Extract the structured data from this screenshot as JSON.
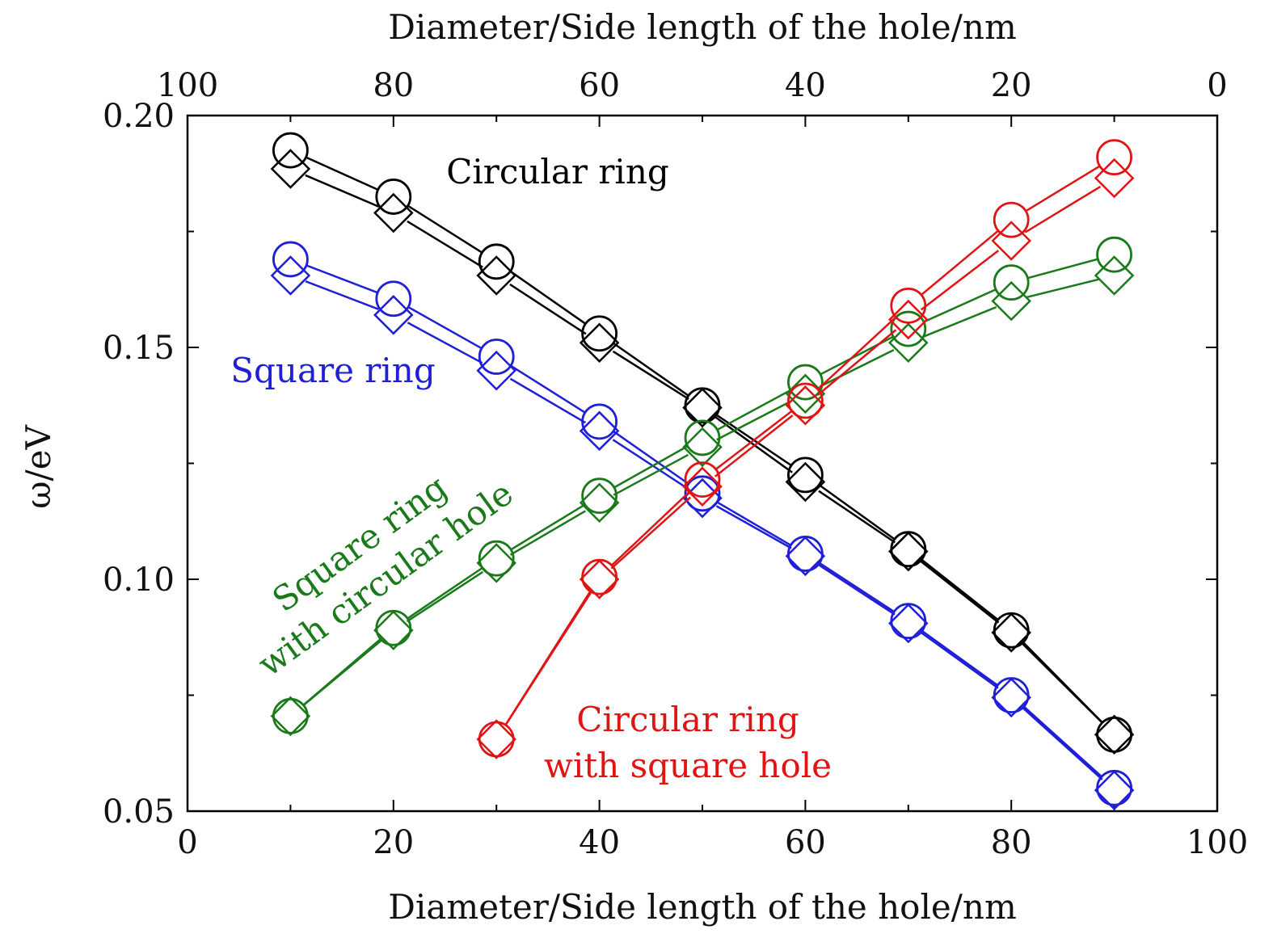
{
  "chart_data": {
    "type": "line",
    "title": "",
    "xlabel": "Diameter/Side length of the hole/nm",
    "x2label": "Diameter/Side length of the hole/nm",
    "ylabel": "ω/eV",
    "xlim": [
      0,
      100
    ],
    "x2lim": [
      100,
      0
    ],
    "ylim": [
      0.05,
      0.2
    ],
    "xticks": [
      "0",
      "20",
      "40",
      "60",
      "80",
      "100"
    ],
    "x2ticks": [
      "100",
      "80",
      "60",
      "40",
      "20",
      "0"
    ],
    "yticks": [
      "0.05",
      "0.10",
      "0.15",
      "0.20"
    ],
    "grid": false,
    "marker_legend": {
      "circle": "upper marker of each pair",
      "diamond": "lower marker of each pair"
    },
    "series": [
      {
        "name": "Circular ring",
        "color": "#000000",
        "x": [
          10,
          20,
          30,
          40,
          50,
          60,
          70,
          80,
          90
        ],
        "circle": [
          0.1925,
          0.1825,
          0.1685,
          0.153,
          0.1375,
          0.1225,
          0.1065,
          0.089,
          0.0665
        ],
        "diamond": [
          0.1885,
          0.179,
          0.1655,
          0.151,
          0.137,
          0.121,
          0.106,
          0.0885,
          0.0665
        ]
      },
      {
        "name": "Square ring",
        "color": "#1f1fd6",
        "x": [
          10,
          20,
          30,
          40,
          50,
          60,
          70,
          80,
          90
        ],
        "circle": [
          0.169,
          0.1605,
          0.148,
          0.134,
          0.1185,
          0.1055,
          0.091,
          0.075,
          0.055
        ],
        "diamond": [
          0.1655,
          0.157,
          0.145,
          0.132,
          0.1175,
          0.105,
          0.0905,
          0.0745,
          0.0545
        ]
      },
      {
        "name": "Square ring with circular hole",
        "color": "#1a7a1a",
        "x": [
          10,
          20,
          30,
          40,
          50,
          60,
          70,
          80,
          90
        ],
        "circle": [
          0.0705,
          0.0895,
          0.1045,
          0.118,
          0.1305,
          0.1425,
          0.154,
          0.164,
          0.17
        ],
        "diamond": [
          0.0705,
          0.089,
          0.1035,
          0.1165,
          0.1285,
          0.14,
          0.151,
          0.16,
          0.1655
        ]
      },
      {
        "name": "Circular ring with square hole",
        "color": "#e01414",
        "x": [
          30,
          40,
          50,
          60,
          70,
          80,
          90
        ],
        "circle": [
          0.0655,
          0.1005,
          0.1215,
          0.1385,
          0.159,
          0.1775,
          0.191
        ],
        "diamond": [
          0.0655,
          0.1,
          0.12,
          0.1375,
          0.156,
          0.173,
          0.1865
        ]
      }
    ],
    "annotations": [
      {
        "text": "Circular ring",
        "color": "#000000"
      },
      {
        "text": "Square ring",
        "color": "#1f1fd6"
      },
      {
        "line1": "Square ring",
        "line2": "with circular hole",
        "color": "#1a7a1a"
      },
      {
        "line1": "Circular ring",
        "line2": "with square hole",
        "color": "#e01414"
      }
    ]
  }
}
